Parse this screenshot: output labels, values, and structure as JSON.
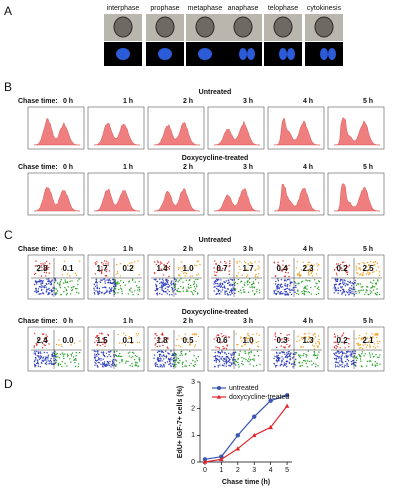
{
  "panel_labels": [
    "A",
    "B",
    "C",
    "D"
  ],
  "phases": [
    "interphase",
    "prophase",
    "metaphase",
    "anaphase",
    "telophase",
    "cytokinesis"
  ],
  "chase_label": "Chase time:",
  "chase_times": [
    "0 h",
    "1 h",
    "2 h",
    "3 h",
    "4 h",
    "5 h"
  ],
  "groups": [
    "Untreated",
    "Doxycycline-treated"
  ],
  "flow": {
    "untreated": [
      [
        "2.8",
        "0.1"
      ],
      [
        "1.7",
        "0.2"
      ],
      [
        "1.4",
        "1.0"
      ],
      [
        "0.7",
        "1.7"
      ],
      [
        "0.4",
        "2.3"
      ],
      [
        "0.2",
        "2.5"
      ]
    ],
    "doxycycline": [
      [
        "2.4",
        "0.0"
      ],
      [
        "1.5",
        "0.1"
      ],
      [
        "1.8",
        "0.5"
      ],
      [
        "0.6",
        "1.0"
      ],
      [
        "0.3",
        "1.3"
      ],
      [
        "0.2",
        "2.1"
      ]
    ]
  },
  "chart_data": {
    "type": "line",
    "x": [
      0,
      1,
      2,
      3,
      4,
      5
    ],
    "xlim": [
      -0.3,
      5.3
    ],
    "xticks": [
      0,
      1,
      2,
      3,
      4,
      5
    ],
    "ylim": [
      0,
      3
    ],
    "yticks": [
      0,
      1,
      2,
      3
    ],
    "xlabel": "Chase time (h)",
    "ylabel": "EdU+ IGF-7+ cells (%)",
    "series": [
      {
        "name": "untreated",
        "color": "#3a56b0",
        "values": [
          0.1,
          0.2,
          1.0,
          1.7,
          2.3,
          2.5
        ]
      },
      {
        "name": "doxycycline-treated",
        "color": "#e0242b",
        "values": [
          0.0,
          0.1,
          0.5,
          1.0,
          1.3,
          2.1
        ]
      }
    ]
  }
}
